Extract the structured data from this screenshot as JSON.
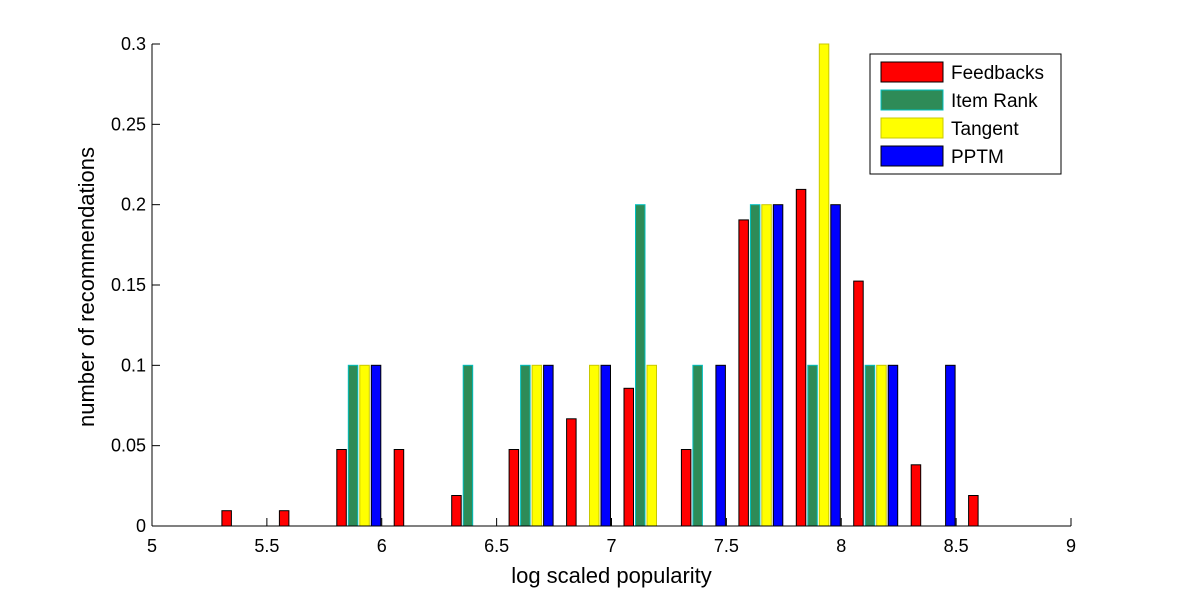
{
  "chart_data": {
    "type": "bar",
    "xlabel": "log scaled popularity",
    "ylabel": "number of recommendations",
    "xlim": [
      5,
      9
    ],
    "ylim": [
      0,
      0.3
    ],
    "xticks": [
      5,
      5.5,
      6,
      6.5,
      7,
      7.5,
      8,
      8.5,
      9
    ],
    "xtick_labels": [
      "5",
      "5.5",
      "6",
      "6.5",
      "7",
      "7.5",
      "8",
      "8.5",
      "9"
    ],
    "yticks": [
      0,
      0.05,
      0.1,
      0.15,
      0.2,
      0.25,
      0.3
    ],
    "ytick_labels": [
      "0",
      "0.05",
      "0.1",
      "0.15",
      "0.2",
      "0.25",
      "0.3"
    ],
    "grid": false,
    "legend_position": "top-right",
    "bin_centers": [
      5.15,
      5.4,
      5.65,
      5.9,
      6.15,
      6.4,
      6.65,
      6.9,
      7.15,
      7.4,
      7.65,
      7.9,
      8.15,
      8.4,
      8.65,
      8.9
    ],
    "bin_width": 0.25,
    "series": [
      {
        "name": "Feedbacks",
        "color": "#ff0000",
        "edge": "#000000",
        "values": [
          0,
          0.0095,
          0.0095,
          0.0476,
          0.0476,
          0.019,
          0.0476,
          0.0667,
          0.0857,
          0.0476,
          0.1905,
          0.2095,
          0.1524,
          0.0381,
          0.019,
          0
        ]
      },
      {
        "name": "Item Rank",
        "color": "#2e8b57",
        "edge": "#00bfbf",
        "values": [
          0,
          0,
          0,
          0.1,
          0,
          0.1,
          0.1,
          0,
          0.2,
          0.1,
          0.2,
          0.1,
          0.1,
          0,
          0,
          0
        ]
      },
      {
        "name": "Tangent",
        "color": "#ffff00",
        "edge": "#c8c800",
        "values": [
          0,
          0,
          0,
          0.1,
          0,
          0,
          0.1,
          0.1,
          0.1,
          0,
          0.2,
          0.3,
          0.1,
          0,
          0,
          0
        ]
      },
      {
        "name": "PPTM",
        "color": "#0000ff",
        "edge": "#000000",
        "values": [
          0,
          0,
          0,
          0.1,
          0,
          0,
          0.1,
          0.1,
          0,
          0.1,
          0.2,
          0.2,
          0.1,
          0.1,
          0,
          0
        ]
      }
    ]
  }
}
